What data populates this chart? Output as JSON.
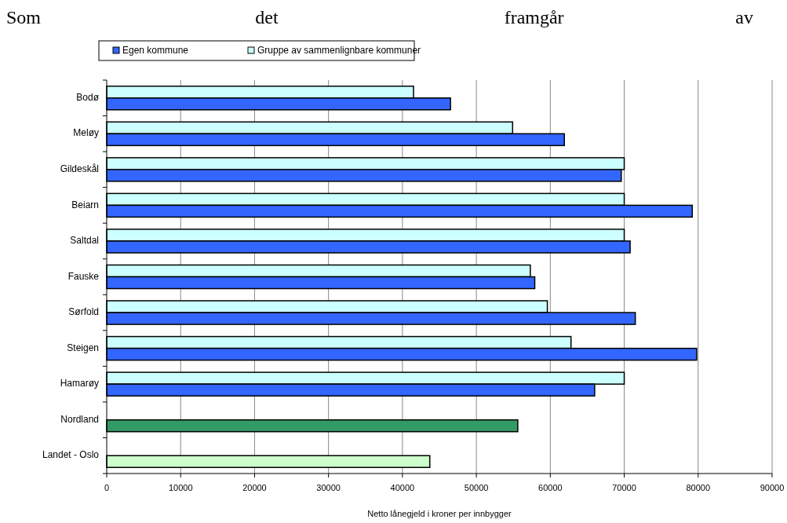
{
  "chart_data": {
    "type": "bar",
    "orientation": "horizontal",
    "xlabel": "Netto lånegjeld i kroner per innbygger",
    "annotations": [
      "Som det framgår av"
    ],
    "categories": [
      "Bodø",
      "Meløy",
      "Gildeskål",
      "Beiarn",
      "Saltdal",
      "Fauske",
      "Sørfold",
      "Steigen",
      "Hamarøy",
      "Nordland",
      "Landet - Oslo"
    ],
    "series": [
      {
        "name": "Gruppe av sammenlignbare kommuner",
        "color": "#ccffff",
        "values": [
          41500,
          54900,
          70000,
          70000,
          70000,
          57300,
          59600,
          62800,
          70000,
          null,
          null
        ]
      },
      {
        "name": "Egen kommune",
        "color": "#3366ff",
        "colors": [
          "#3366ff",
          "#3366ff",
          "#3366ff",
          "#3366ff",
          "#3366ff",
          "#3366ff",
          "#3366ff",
          "#3366ff",
          "#3366ff",
          "#339966",
          "#ccffcc"
        ],
        "values": [
          46500,
          61900,
          69600,
          79200,
          70800,
          57900,
          71500,
          79800,
          66000,
          55600,
          43700
        ]
      }
    ],
    "xlim": [
      0,
      90000
    ],
    "xticks": [
      0,
      10000,
      20000,
      30000,
      40000,
      50000,
      60000,
      70000,
      80000,
      90000
    ],
    "grid": "x",
    "legend": "top"
  }
}
